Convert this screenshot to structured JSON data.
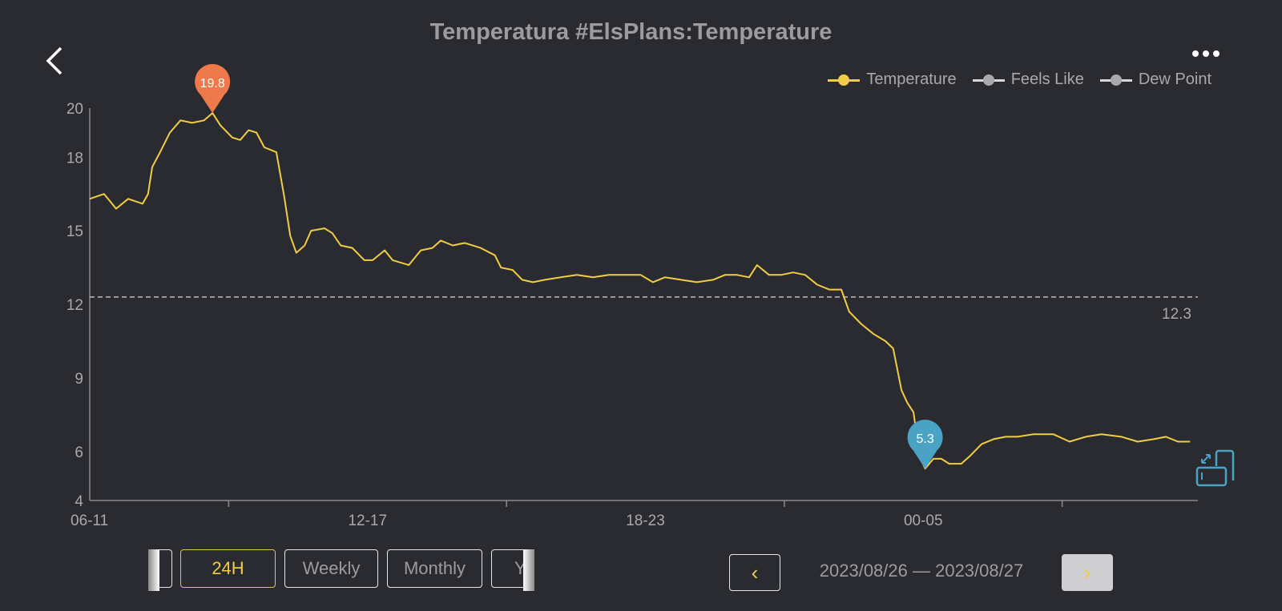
{
  "header": {
    "title": "Temperatura #ElsPlans:Temperature",
    "back_icon": "chevron-left-icon",
    "more_icon": "more-horizontal-icon"
  },
  "legend": [
    {
      "label": "Temperature",
      "color": "#f1cd45"
    },
    {
      "label": "Feels Like",
      "color": "#a9a9ad"
    },
    {
      "label": "Dew Point",
      "color": "#a9a9ad"
    }
  ],
  "chart_data": {
    "type": "line",
    "title": "Temperatura #ElsPlans:Temperature",
    "xlabel": "",
    "ylabel": "",
    "x_unit": "hours since 06:00",
    "xlim": [
      0,
      23.93
    ],
    "ylim": [
      4,
      20
    ],
    "yticks": [
      4,
      6,
      9,
      12,
      15,
      18,
      20
    ],
    "xtick_marks": [
      3,
      9,
      15,
      21
    ],
    "xtick_labels": [
      {
        "x": 0,
        "label": "06-11"
      },
      {
        "x": 6,
        "label": "12-17"
      },
      {
        "x": 12,
        "label": "18-23"
      },
      {
        "x": 18,
        "label": "00-05"
      }
    ],
    "series": [
      {
        "name": "Temperature",
        "color": "#f1cd45",
        "x": [
          0,
          0.31,
          0.57,
          0.83,
          1.14,
          1.26,
          1.35,
          1.52,
          1.73,
          1.96,
          2.21,
          2.47,
          2.65,
          2.82,
          3.08,
          3.25,
          3.43,
          3.6,
          3.77,
          4.03,
          4.2,
          4.33,
          4.46,
          4.64,
          4.78,
          5.07,
          5.24,
          5.42,
          5.67,
          5.93,
          6.11,
          6.37,
          6.54,
          6.89,
          7.15,
          7.4,
          7.58,
          7.84,
          8.1,
          8.44,
          8.75,
          8.88,
          9.13,
          9.34,
          9.57,
          9.83,
          10.17,
          10.52,
          10.87,
          11.21,
          11.56,
          11.9,
          12.16,
          12.42,
          12.77,
          13.11,
          13.46,
          13.72,
          13.98,
          14.24,
          14.41,
          14.67,
          14.93,
          15.19,
          15.45,
          15.71,
          15.97,
          16.23,
          16.4,
          16.66,
          16.92,
          17.18,
          17.35,
          17.53,
          17.65,
          17.79,
          17.92,
          18.04,
          18.22,
          18.39,
          18.56,
          18.82,
          19.0,
          19.26,
          19.52,
          19.78,
          20.03,
          20.38,
          20.81,
          21.16,
          21.51,
          21.85,
          22.28,
          22.63,
          22.98,
          23.24,
          23.5,
          23.76
        ],
        "y": [
          16.3,
          16.5,
          15.9,
          16.3,
          16.1,
          16.5,
          17.6,
          18.2,
          19.0,
          19.5,
          19.4,
          19.5,
          19.8,
          19.3,
          18.8,
          18.7,
          19.1,
          19.0,
          18.4,
          18.2,
          16.4,
          14.8,
          14.1,
          14.4,
          15.0,
          15.1,
          14.9,
          14.4,
          14.3,
          13.8,
          13.8,
          14.2,
          13.8,
          13.6,
          14.2,
          14.3,
          14.6,
          14.4,
          14.5,
          14.3,
          14.0,
          13.5,
          13.4,
          13.0,
          12.9,
          13.0,
          13.1,
          13.2,
          13.1,
          13.2,
          13.2,
          13.2,
          12.9,
          13.1,
          13.0,
          12.9,
          13.0,
          13.2,
          13.2,
          13.1,
          13.6,
          13.2,
          13.2,
          13.3,
          13.2,
          12.8,
          12.6,
          12.6,
          11.7,
          11.2,
          10.8,
          10.5,
          10.2,
          8.5,
          8.0,
          7.6,
          5.8,
          5.3,
          5.7,
          5.7,
          5.5,
          5.5,
          5.8,
          6.3,
          6.5,
          6.6,
          6.6,
          6.7,
          6.7,
          6.4,
          6.6,
          6.7,
          6.6,
          6.4,
          6.5,
          6.6,
          6.4,
          6.4
        ]
      }
    ],
    "max_marker": {
      "x": 2.65,
      "value": 19.8,
      "label": "19.8",
      "color": "#ee7a4c"
    },
    "min_marker": {
      "x": 18.04,
      "value": 5.3,
      "label": "5.3",
      "color": "#4aa3c5"
    },
    "average_line": {
      "value": 12.3,
      "label": "12.3"
    },
    "grid": false,
    "legend_position": "top-right"
  },
  "controls": {
    "periods": [
      {
        "label": ""
      },
      {
        "label": "24H",
        "active": true
      },
      {
        "label": "Weekly"
      },
      {
        "label": "Monthly"
      },
      {
        "label": "Ye"
      }
    ],
    "prev_icon": "‹",
    "next_icon": "›",
    "date_range": "2023/08/26 — 2023/08/27",
    "rotate_icon": "rotate-screen-icon"
  }
}
